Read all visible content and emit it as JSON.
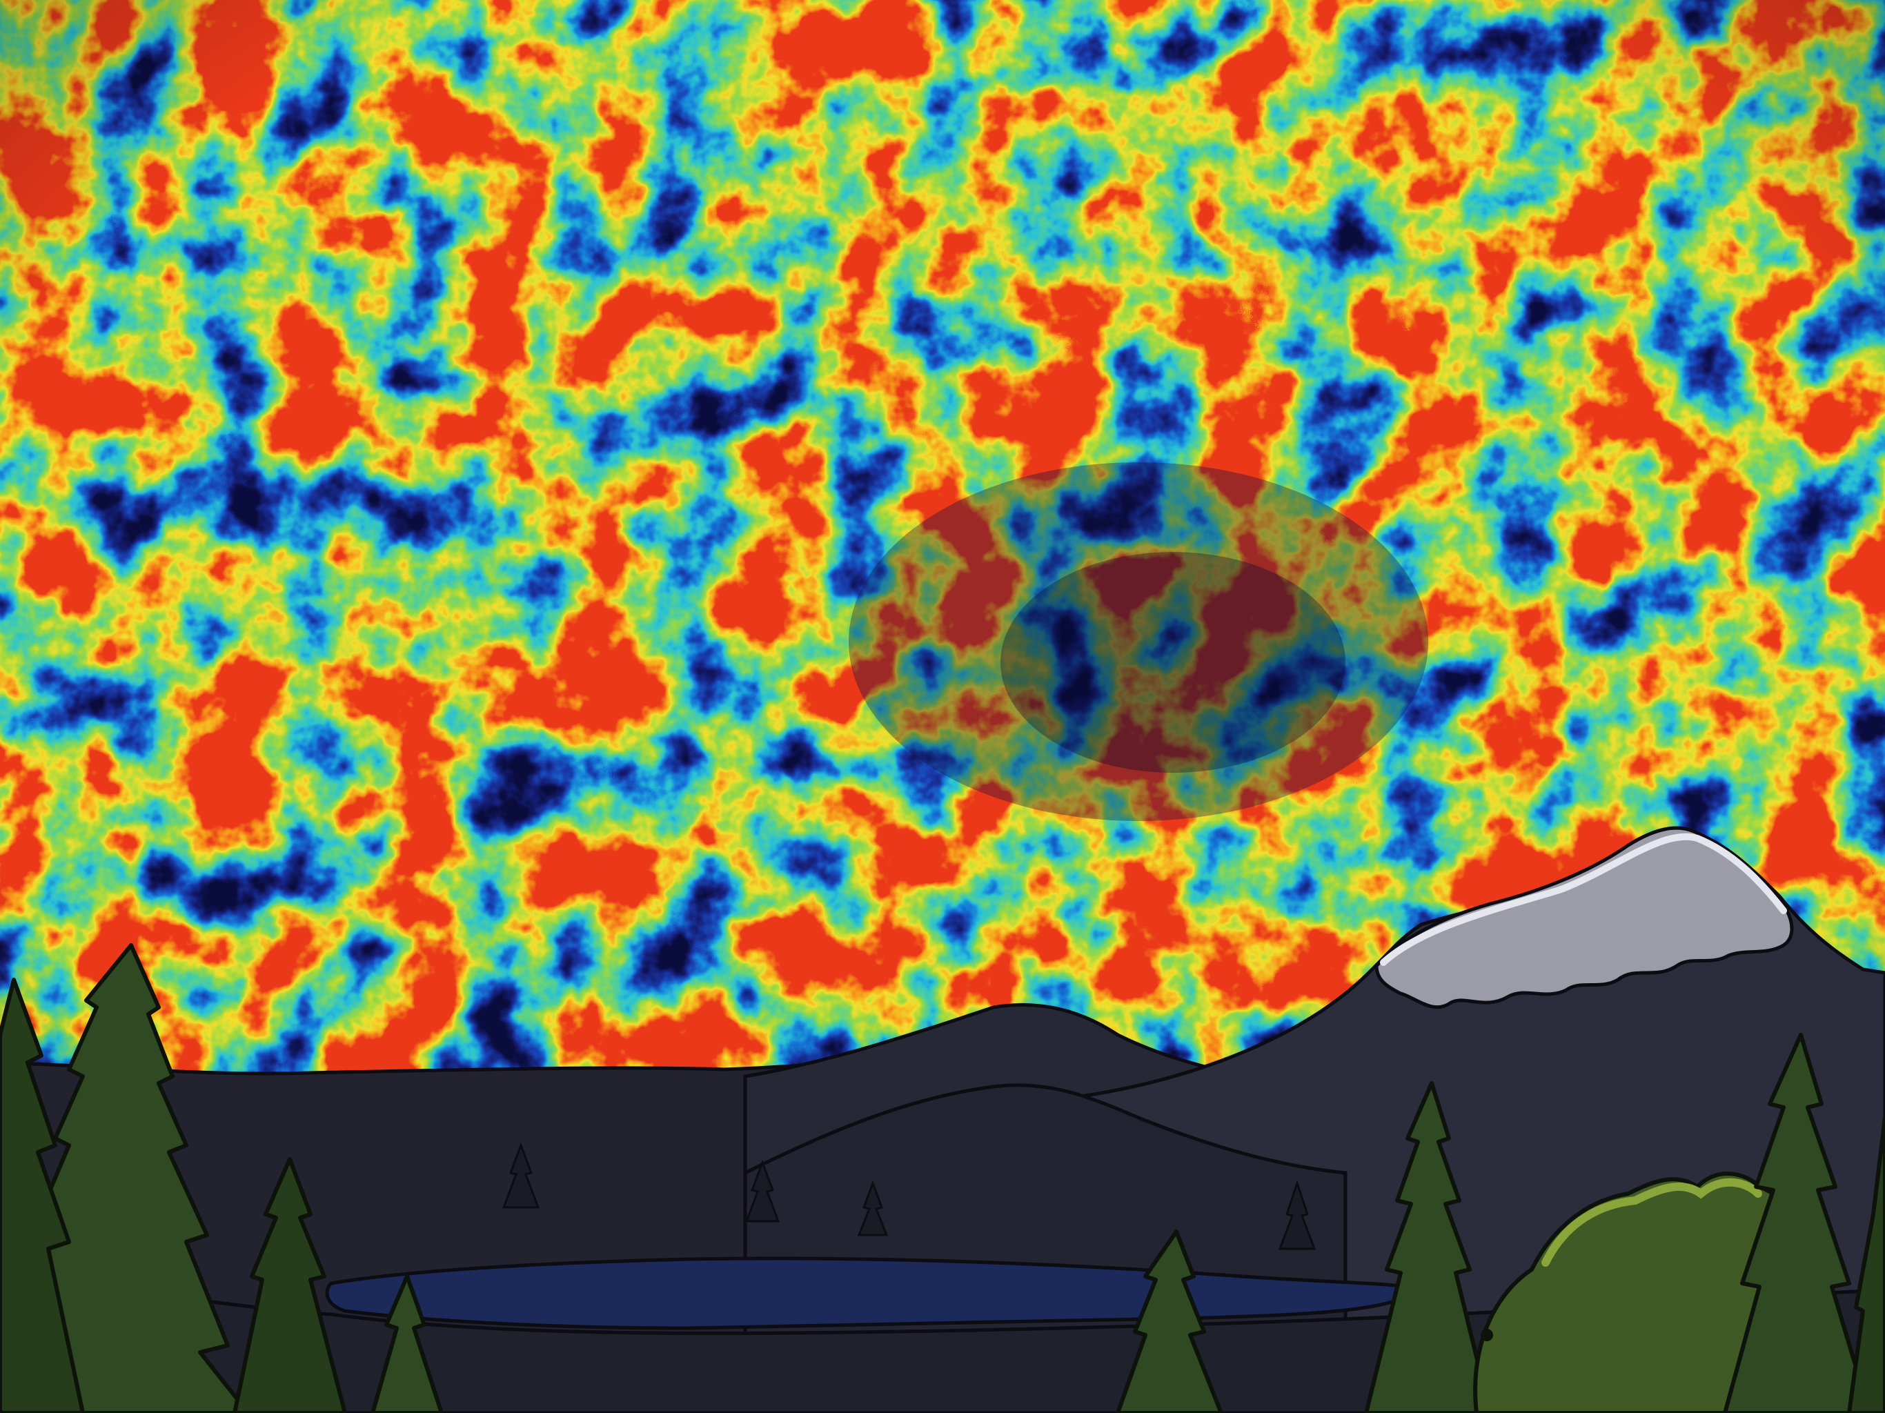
{
  "scene": {
    "subject": "illustration",
    "sky": {
      "kind": "cosmic-microwave-background-map",
      "palette": [
        "#0b0d3d",
        "#1a2a9a",
        "#1e6fd0",
        "#1fc6d8",
        "#3fcf8a",
        "#9ad93a",
        "#f2e033",
        "#f59a1c",
        "#e3371b"
      ]
    },
    "landscape": {
      "mountain_color": "#2b2d3c",
      "ridge_dark_color": "#1f212d",
      "snow_color": "#9c9ca8",
      "lake_color": "#1b2a5a",
      "tree_color": "#2f4a22",
      "tree_outline_color": "#0d120a",
      "bush_color": "#4b6a2b",
      "bush_highlight_color": "#8aa53a"
    }
  }
}
